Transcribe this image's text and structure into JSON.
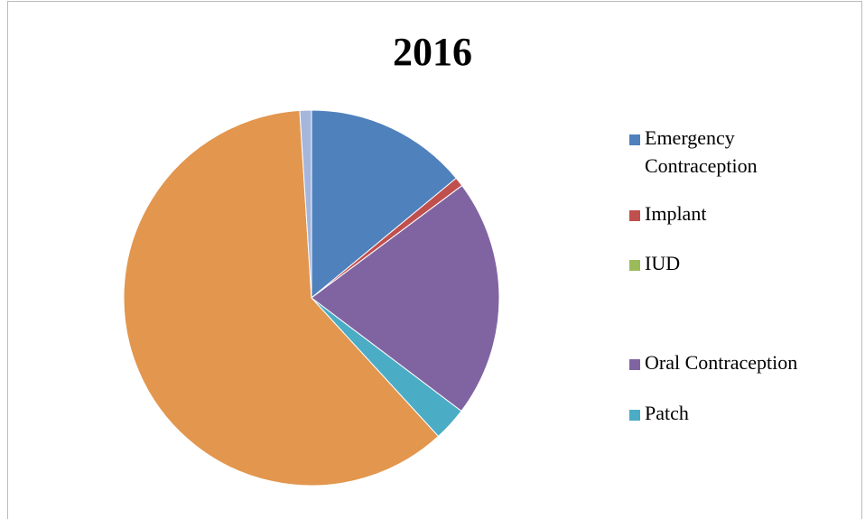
{
  "chart_data": {
    "type": "pie",
    "title": "2016",
    "categories": [
      "Emergency Contraception",
      "Implant",
      "IUD",
      "Oral Contraception",
      "Patch",
      null,
      null
    ],
    "values": [
      14,
      0.8,
      0,
      20.5,
      2.9,
      60.8,
      1
    ],
    "colors": [
      "#4f81bd",
      "#c0504d",
      "#9bbb59",
      "#8064a2",
      "#4bacc6",
      "#e2964e",
      "#a5b6dc"
    ]
  }
}
